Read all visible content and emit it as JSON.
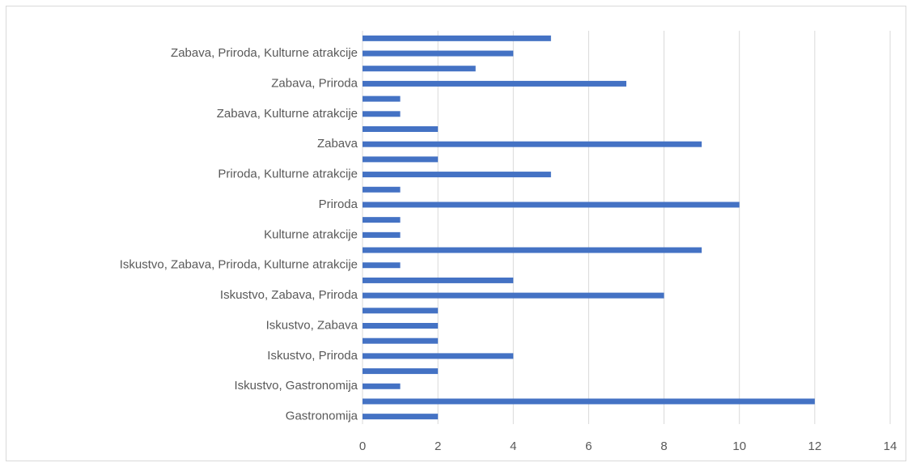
{
  "chart_data": {
    "type": "bar",
    "orientation": "horizontal",
    "categories": [
      "Gastronomija",
      null,
      "Iskustvo, Gastronomija",
      null,
      "Iskustvo, Priroda",
      null,
      "Iskustvo, Zabava",
      null,
      "Iskustvo, Zabava, Priroda",
      null,
      "Iskustvo, Zabava, Priroda, Kulturne atrakcije",
      null,
      "Kulturne atrakcije",
      null,
      "Priroda",
      null,
      "Priroda, Kulturne atrakcije",
      null,
      "Zabava",
      null,
      "Zabava, Kulturne atrakcije",
      null,
      "Zabava, Priroda",
      null,
      "Zabava, Priroda, Kulturne atrakcije",
      null
    ],
    "values": [
      2,
      12,
      1,
      2,
      4,
      2,
      2,
      2,
      8,
      4,
      1,
      9,
      1,
      1,
      10,
      1,
      5,
      2,
      9,
      2,
      1,
      1,
      7,
      3,
      4,
      5
    ],
    "color": "#4472c4",
    "xlim": [
      0,
      14
    ],
    "xticks": [
      0,
      2,
      4,
      6,
      8,
      10,
      12,
      14
    ],
    "grid": true
  }
}
